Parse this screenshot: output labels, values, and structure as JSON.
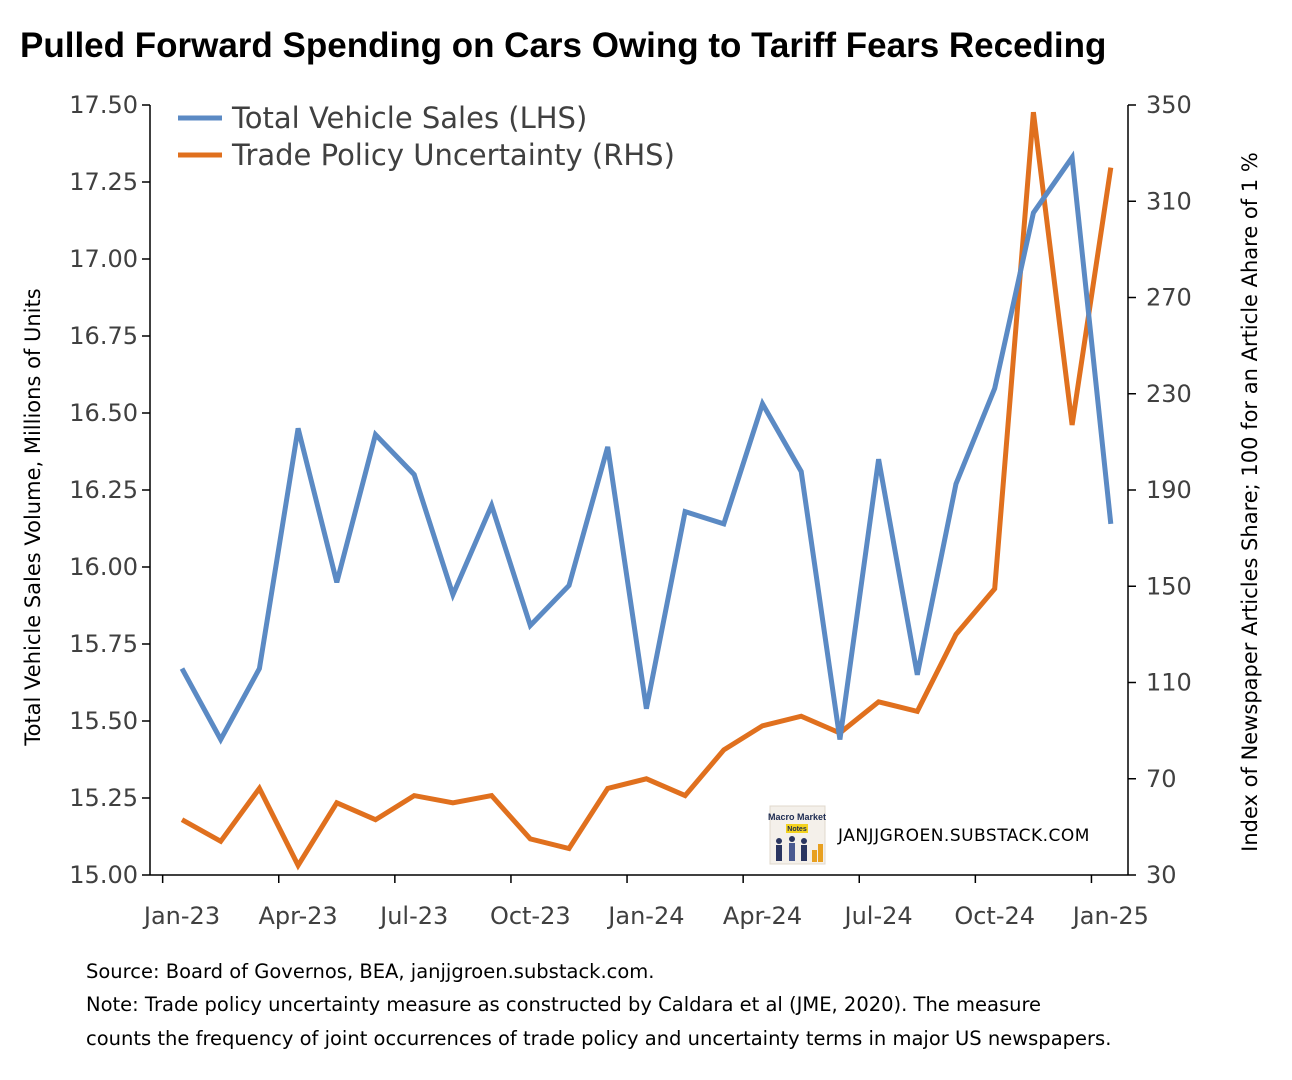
{
  "title": "Pulled Forward Spending on Cars Owing to Tariff Fears Receding",
  "source_note": "Source: Board of Governos, BEA, janjjgroen.substack.com.",
  "note_lines": [
    "Note: Trade policy uncertainty measure as constructed by Caldara et al (JME, 2020). The measure",
    "counts the frequency of joint occurrences of trade policy and uncertainty terms in major US newspapers."
  ],
  "watermark": {
    "text": "JANJJGROEN.SUBSTACK.COM",
    "logo_text": "Macro Market Notes"
  },
  "colors": {
    "sales": "#5B8AC4",
    "tpu": "#E0701E",
    "axis": "#000000",
    "tick_text": "#404040"
  },
  "chart_data": {
    "type": "line",
    "title": "Pulled Forward Spending on Cars Owing to Tariff Fears Receding",
    "x_ticks": [
      "Jan-23",
      "Apr-23",
      "Jul-23",
      "Oct-23",
      "Jan-24",
      "Apr-24",
      "Jul-24",
      "Oct-24",
      "Jan-25"
    ],
    "x": [
      "Jan-23",
      "Feb-23",
      "Mar-23",
      "Apr-23",
      "May-23",
      "Jun-23",
      "Jul-23",
      "Aug-23",
      "Sep-23",
      "Oct-23",
      "Nov-23",
      "Dec-23",
      "Jan-24",
      "Feb-24",
      "Mar-24",
      "Apr-24",
      "May-24",
      "Jun-24",
      "Jul-24",
      "Aug-24",
      "Sep-24",
      "Oct-24",
      "Nov-24",
      "Dec-24",
      "Jan-25"
    ],
    "ylabel_left": "Total Vehicle Sales Volume, Millions of Units",
    "ylabel_right": "Index of Newspaper Articles Share; 100 for an Article Ahare of 1 %",
    "ylim_left": [
      15.0,
      17.5
    ],
    "ylim_right": [
      30,
      350
    ],
    "yticks_left": [
      "15.00",
      "15.25",
      "15.50",
      "15.75",
      "16.00",
      "16.25",
      "16.50",
      "16.75",
      "17.00",
      "17.25",
      "17.50"
    ],
    "yticks_right": [
      "30",
      "70",
      "110",
      "150",
      "190",
      "230",
      "270",
      "310",
      "350"
    ],
    "legend_position": "top-left",
    "grid": false,
    "series": [
      {
        "name": "Total Vehicle Sales (LHS)",
        "axis": "left",
        "values": [
          15.67,
          15.44,
          15.67,
          16.45,
          15.95,
          16.43,
          16.3,
          15.91,
          16.2,
          15.81,
          15.94,
          16.39,
          15.54,
          16.18,
          16.14,
          16.53,
          16.31,
          15.44,
          16.35,
          15.65,
          16.27,
          16.58,
          17.15,
          17.33,
          16.14
        ]
      },
      {
        "name": "Trade Policy Uncertainty (RHS)",
        "axis": "right",
        "values": [
          53,
          44,
          66,
          34,
          60,
          53,
          63,
          60,
          63,
          45,
          41,
          66,
          70,
          63,
          82,
          92,
          96,
          89,
          102,
          98,
          130,
          149,
          347,
          217,
          324
        ]
      }
    ]
  }
}
